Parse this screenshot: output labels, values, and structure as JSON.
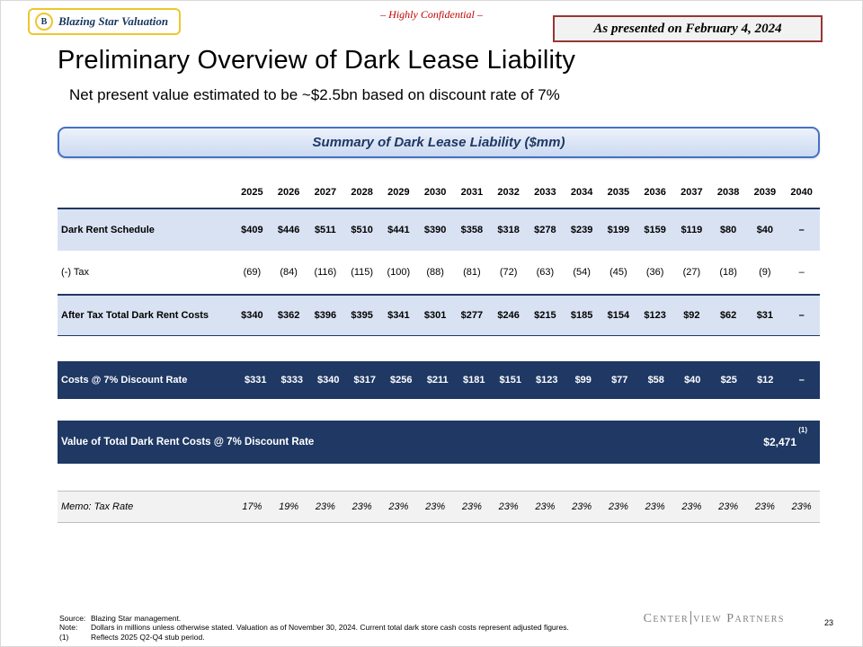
{
  "header": {
    "logo_badge": "B",
    "logo_text": "Blazing Star Valuation",
    "confidential": "– Highly Confidential –",
    "presented": "As presented on February 4, 2024"
  },
  "title": "Preliminary Overview of Dark Lease Liability",
  "subtitle": "Net present value estimated to be ~$2.5bn based on discount rate of 7%",
  "table": {
    "title": "Summary of Dark Lease Liability ($mm)",
    "years": [
      "2025",
      "2026",
      "2027",
      "2028",
      "2029",
      "2030",
      "2031",
      "2032",
      "2033",
      "2034",
      "2035",
      "2036",
      "2037",
      "2038",
      "2039",
      "2040"
    ],
    "rows": [
      {
        "id": "dark-rent-schedule",
        "label": "Dark Rent Schedule",
        "style": "band bold",
        "values": [
          "$409",
          "$446",
          "$511",
          "$510",
          "$441",
          "$390",
          "$358",
          "$318",
          "$278",
          "$239",
          "$199",
          "$159",
          "$119",
          "$80",
          "$40",
          "–"
        ]
      },
      {
        "id": "tax",
        "label": "(-) Tax",
        "style": "plain",
        "values": [
          "(69)",
          "(84)",
          "(116)",
          "(115)",
          "(100)",
          "(88)",
          "(81)",
          "(72)",
          "(63)",
          "(54)",
          "(45)",
          "(36)",
          "(27)",
          "(18)",
          "(9)",
          "–"
        ]
      },
      {
        "id": "after-tax-total",
        "label": "After Tax Total Dark Rent Costs",
        "style": "band bold topline",
        "values": [
          "$340",
          "$362",
          "$396",
          "$395",
          "$341",
          "$301",
          "$277",
          "$246",
          "$215",
          "$185",
          "$154",
          "$123",
          "$92",
          "$62",
          "$31",
          "–"
        ]
      },
      {
        "id": "discounted-costs",
        "label": "Costs @ 7% Discount Rate",
        "style": "navy",
        "values": [
          "$331",
          "$333",
          "$340",
          "$317",
          "$256",
          "$211",
          "$181",
          "$151",
          "$123",
          "$99",
          "$77",
          "$58",
          "$40",
          "$25",
          "$12",
          "–"
        ]
      },
      {
        "id": "total-value",
        "label": "Value of Total Dark Rent Costs @ 7% Discount Rate",
        "style": "navy total",
        "value": "$2,471",
        "footnote": "(1)"
      },
      {
        "id": "memo-tax-rate",
        "label": "Memo: Tax Rate",
        "style": "memo",
        "values": [
          "17%",
          "19%",
          "23%",
          "23%",
          "23%",
          "23%",
          "23%",
          "23%",
          "23%",
          "23%",
          "23%",
          "23%",
          "23%",
          "23%",
          "23%",
          "23%"
        ]
      }
    ]
  },
  "footer": {
    "source_label": "Source:",
    "source_text": "Blazing Star management.",
    "note_label": "Note:",
    "note_text": "Dollars in millions unless otherwise stated. Valuation as of November 30, 2024. Current total dark store cash costs represent adjusted figures.",
    "fn1_label": "(1)",
    "fn1_text": "Reflects 2025 Q2-Q4 stub period.",
    "brand_part1": "Center",
    "brand_part2": "view Partners",
    "page_number": "23"
  }
}
